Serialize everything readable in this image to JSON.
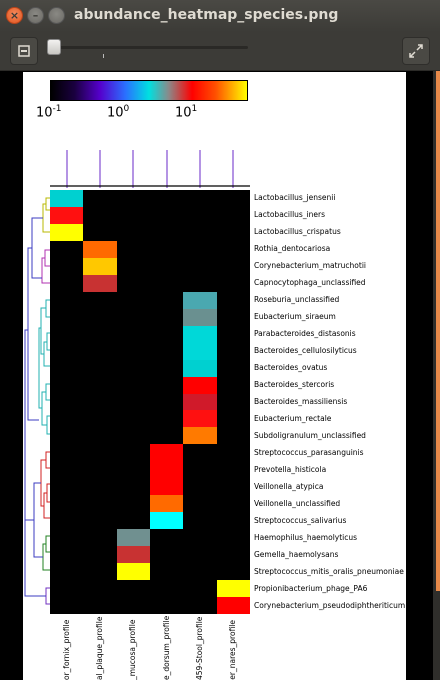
{
  "window": {
    "title": "abundance_heatmap_species.png"
  },
  "toolbar": {
    "zoom_out_icon": "zoom-out-icon",
    "fullscreen_icon": "fullscreen-icon",
    "zoom_slider_value": 0.03
  },
  "colorbar": {
    "tick_labels": [
      {
        "base": "10",
        "exp": "-1"
      },
      {
        "base": "10",
        "exp": "0"
      },
      {
        "base": "10",
        "exp": "1"
      }
    ]
  },
  "chart_data": {
    "type": "heatmap",
    "rows": [
      "Lactobacillus_jensenii",
      "Lactobacillus_iners",
      "Lactobacillus_crispatus",
      "Rothia_dentocariosa",
      "Corynebacterium_matruchotii",
      "Capnocytophaga_unclassified",
      "Roseburia_unclassified",
      "Eubacterium_siraeum",
      "Parabacteroides_distasonis",
      "Bacteroides_cellulosilyticus",
      "Bacteroides_ovatus",
      "Bacteroides_stercoris",
      "Bacteroides_massiliensis",
      "Eubacterium_rectale",
      "Subdoligranulum_unclassified",
      "Streptococcus_parasanguinis",
      "Prevotella_histicola",
      "Veillonella_atypica",
      "Veillonella_unclassified",
      "Streptococcus_salivarius",
      "Haemophilus_haemolyticus",
      "Gemella_haemolysans",
      "Streptococcus_mitis_oralis_pneumoniae",
      "Propionibacterium_phage_PA6",
      "Corynebacterium_pseudodiphtheriticum"
    ],
    "columns": [
      "or_fornix_profile",
      "al_plaque_profile",
      "_mucosa_profile",
      "e_dorsum_profile",
      "459-Stool_profile",
      "er_nares_profile"
    ],
    "cells": [
      {
        "row": 0,
        "col": 0,
        "color": "#00d0d0"
      },
      {
        "row": 1,
        "col": 0,
        "color": "#ff1010"
      },
      {
        "row": 2,
        "col": 0,
        "color": "#ffff00"
      },
      {
        "row": 3,
        "col": 1,
        "color": "#ff6a00"
      },
      {
        "row": 4,
        "col": 1,
        "color": "#ffc800"
      },
      {
        "row": 5,
        "col": 1,
        "color": "#c83232"
      },
      {
        "row": 6,
        "col": 4,
        "color": "#4aa8b0"
      },
      {
        "row": 7,
        "col": 4,
        "color": "#6a9090"
      },
      {
        "row": 8,
        "col": 4,
        "color": "#00d8d8"
      },
      {
        "row": 9,
        "col": 4,
        "color": "#00d8d8"
      },
      {
        "row": 10,
        "col": 4,
        "color": "#00d0d0"
      },
      {
        "row": 11,
        "col": 4,
        "color": "#ff0000"
      },
      {
        "row": 12,
        "col": 4,
        "color": "#d01a2a"
      },
      {
        "row": 13,
        "col": 4,
        "color": "#ff1010"
      },
      {
        "row": 14,
        "col": 4,
        "color": "#ff7a00"
      },
      {
        "row": 15,
        "col": 3,
        "color": "#ff0000"
      },
      {
        "row": 16,
        "col": 3,
        "color": "#ff0000"
      },
      {
        "row": 17,
        "col": 3,
        "color": "#ff0000"
      },
      {
        "row": 18,
        "col": 3,
        "color": "#ff6a00"
      },
      {
        "row": 19,
        "col": 3,
        "color": "#00ffff"
      },
      {
        "row": 20,
        "col": 2,
        "color": "#709090"
      },
      {
        "row": 21,
        "col": 2,
        "color": "#c83232"
      },
      {
        "row": 22,
        "col": 2,
        "color": "#ffff00"
      },
      {
        "row": 23,
        "col": 5,
        "color": "#ffff00"
      },
      {
        "row": 24,
        "col": 5,
        "color": "#ff0000"
      }
    ],
    "colorbar_scale": "log",
    "colorbar_range": [
      0.1,
      100
    ]
  }
}
